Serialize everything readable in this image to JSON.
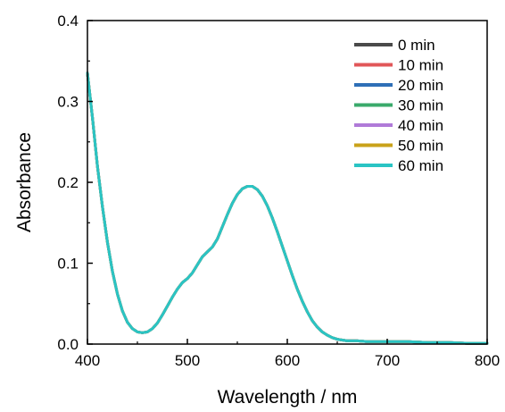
{
  "chart_data": {
    "type": "line",
    "title": "",
    "xlabel": "Wavelength / nm",
    "ylabel": "Absorbance",
    "xlim": [
      400,
      800
    ],
    "ylim": [
      0.0,
      0.4
    ],
    "xticks": [
      "400",
      "500",
      "600",
      "700",
      "800"
    ],
    "yticks": [
      "0.0",
      "0.1",
      "0.2",
      "0.3",
      "0.4"
    ],
    "grid": false,
    "legend_position": "top-right",
    "x": [
      400,
      405,
      410,
      415,
      420,
      425,
      430,
      435,
      440,
      445,
      450,
      455,
      460,
      465,
      470,
      475,
      480,
      485,
      490,
      495,
      500,
      505,
      510,
      515,
      520,
      525,
      530,
      535,
      540,
      545,
      550,
      555,
      560,
      565,
      570,
      575,
      580,
      585,
      590,
      595,
      600,
      605,
      610,
      615,
      620,
      625,
      630,
      635,
      640,
      645,
      650,
      655,
      660,
      665,
      670,
      680,
      690,
      700,
      720,
      740,
      760,
      780,
      800
    ],
    "series": [
      {
        "name": "0 min",
        "color": "#4a4a4a",
        "values": [
          0.335,
          0.28,
          0.22,
          0.17,
          0.126,
          0.09,
          0.062,
          0.041,
          0.027,
          0.019,
          0.015,
          0.014,
          0.015,
          0.019,
          0.026,
          0.036,
          0.047,
          0.058,
          0.068,
          0.076,
          0.081,
          0.088,
          0.098,
          0.108,
          0.114,
          0.12,
          0.13,
          0.145,
          0.16,
          0.174,
          0.185,
          0.192,
          0.195,
          0.195,
          0.191,
          0.183,
          0.171,
          0.156,
          0.139,
          0.121,
          0.103,
          0.085,
          0.068,
          0.053,
          0.04,
          0.029,
          0.021,
          0.015,
          0.011,
          0.008,
          0.006,
          0.005,
          0.004,
          0.004,
          0.004,
          0.003,
          0.003,
          0.003,
          0.003,
          0.002,
          0.002,
          0.001,
          0.001
        ]
      },
      {
        "name": "10 min",
        "color": "#e15759",
        "values": [
          0.335,
          0.28,
          0.22,
          0.17,
          0.126,
          0.09,
          0.062,
          0.041,
          0.027,
          0.019,
          0.015,
          0.014,
          0.015,
          0.019,
          0.026,
          0.036,
          0.047,
          0.058,
          0.068,
          0.076,
          0.081,
          0.088,
          0.098,
          0.108,
          0.114,
          0.12,
          0.13,
          0.145,
          0.16,
          0.174,
          0.185,
          0.192,
          0.195,
          0.195,
          0.191,
          0.183,
          0.171,
          0.156,
          0.139,
          0.121,
          0.103,
          0.085,
          0.068,
          0.053,
          0.04,
          0.029,
          0.021,
          0.015,
          0.011,
          0.008,
          0.006,
          0.005,
          0.004,
          0.004,
          0.004,
          0.003,
          0.003,
          0.003,
          0.003,
          0.002,
          0.002,
          0.001,
          0.001
        ]
      },
      {
        "name": "20 min",
        "color": "#2e6fb7",
        "values": [
          0.335,
          0.28,
          0.22,
          0.17,
          0.126,
          0.09,
          0.062,
          0.041,
          0.027,
          0.019,
          0.015,
          0.014,
          0.015,
          0.019,
          0.026,
          0.036,
          0.047,
          0.058,
          0.068,
          0.076,
          0.081,
          0.088,
          0.098,
          0.108,
          0.114,
          0.12,
          0.13,
          0.145,
          0.16,
          0.174,
          0.185,
          0.192,
          0.195,
          0.195,
          0.191,
          0.183,
          0.171,
          0.156,
          0.139,
          0.121,
          0.103,
          0.085,
          0.068,
          0.053,
          0.04,
          0.029,
          0.021,
          0.015,
          0.011,
          0.008,
          0.006,
          0.005,
          0.004,
          0.004,
          0.004,
          0.003,
          0.003,
          0.003,
          0.003,
          0.002,
          0.002,
          0.001,
          0.001
        ]
      },
      {
        "name": "30 min",
        "color": "#3aaa6b",
        "values": [
          0.335,
          0.28,
          0.22,
          0.17,
          0.126,
          0.09,
          0.062,
          0.041,
          0.027,
          0.019,
          0.015,
          0.014,
          0.015,
          0.019,
          0.026,
          0.036,
          0.047,
          0.058,
          0.068,
          0.076,
          0.081,
          0.088,
          0.098,
          0.108,
          0.114,
          0.12,
          0.13,
          0.145,
          0.16,
          0.174,
          0.185,
          0.192,
          0.195,
          0.195,
          0.191,
          0.183,
          0.171,
          0.156,
          0.139,
          0.121,
          0.103,
          0.085,
          0.068,
          0.053,
          0.04,
          0.029,
          0.021,
          0.015,
          0.011,
          0.008,
          0.006,
          0.005,
          0.004,
          0.004,
          0.004,
          0.003,
          0.003,
          0.003,
          0.003,
          0.002,
          0.002,
          0.001,
          0.001
        ]
      },
      {
        "name": "40 min",
        "color": "#b07ad8",
        "values": [
          0.335,
          0.28,
          0.22,
          0.17,
          0.126,
          0.09,
          0.062,
          0.041,
          0.027,
          0.019,
          0.015,
          0.014,
          0.015,
          0.019,
          0.026,
          0.036,
          0.047,
          0.058,
          0.068,
          0.076,
          0.081,
          0.088,
          0.098,
          0.108,
          0.114,
          0.12,
          0.13,
          0.145,
          0.16,
          0.174,
          0.185,
          0.192,
          0.195,
          0.195,
          0.191,
          0.183,
          0.171,
          0.156,
          0.139,
          0.121,
          0.103,
          0.085,
          0.068,
          0.053,
          0.04,
          0.029,
          0.021,
          0.015,
          0.011,
          0.008,
          0.006,
          0.005,
          0.004,
          0.004,
          0.004,
          0.003,
          0.003,
          0.003,
          0.003,
          0.002,
          0.002,
          0.001,
          0.001
        ]
      },
      {
        "name": "50 min",
        "color": "#c9a21a",
        "values": [
          0.335,
          0.28,
          0.22,
          0.17,
          0.126,
          0.09,
          0.062,
          0.041,
          0.027,
          0.019,
          0.015,
          0.014,
          0.015,
          0.019,
          0.026,
          0.036,
          0.047,
          0.058,
          0.068,
          0.076,
          0.081,
          0.088,
          0.098,
          0.108,
          0.114,
          0.12,
          0.13,
          0.145,
          0.16,
          0.174,
          0.185,
          0.192,
          0.195,
          0.195,
          0.191,
          0.183,
          0.171,
          0.156,
          0.139,
          0.121,
          0.103,
          0.085,
          0.068,
          0.053,
          0.04,
          0.029,
          0.021,
          0.015,
          0.011,
          0.008,
          0.006,
          0.005,
          0.004,
          0.004,
          0.004,
          0.003,
          0.003,
          0.003,
          0.003,
          0.002,
          0.002,
          0.001,
          0.001
        ]
      },
      {
        "name": "60 min",
        "color": "#2ac4c4",
        "values": [
          0.335,
          0.28,
          0.22,
          0.17,
          0.126,
          0.09,
          0.062,
          0.041,
          0.027,
          0.019,
          0.015,
          0.014,
          0.015,
          0.019,
          0.026,
          0.036,
          0.047,
          0.058,
          0.068,
          0.076,
          0.081,
          0.088,
          0.098,
          0.108,
          0.114,
          0.12,
          0.13,
          0.145,
          0.16,
          0.174,
          0.185,
          0.192,
          0.195,
          0.195,
          0.191,
          0.183,
          0.171,
          0.156,
          0.139,
          0.121,
          0.103,
          0.085,
          0.068,
          0.053,
          0.04,
          0.029,
          0.021,
          0.015,
          0.011,
          0.008,
          0.006,
          0.005,
          0.004,
          0.004,
          0.004,
          0.003,
          0.003,
          0.003,
          0.003,
          0.002,
          0.002,
          0.001,
          0.001
        ]
      }
    ]
  }
}
